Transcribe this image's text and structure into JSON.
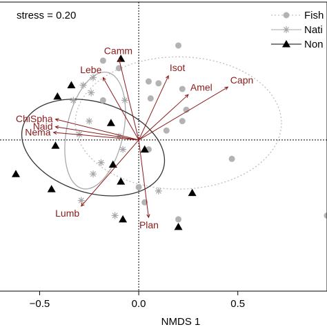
{
  "chart_data": {
    "type": "scatter",
    "stress_label": "stress = 0.20",
    "xlabel": "NMDS 1",
    "ylabel": "",
    "xlim": [
      -0.7,
      0.95
    ],
    "ylim": [
      -0.8,
      0.73
    ],
    "x_ticks": [
      -0.5,
      0.0,
      0.5
    ],
    "x_tick_labels": [
      "−0.5",
      "0.0",
      "0.5"
    ],
    "colors": {
      "fish": "#b3b3b3",
      "native": "#a6a6a6",
      "none": "#000000",
      "vector": "#8b1a1a",
      "ellipse_fish": "#bdbdbd",
      "ellipse_native": "#a9a9a9",
      "ellipse_none": "#333333"
    },
    "legend": {
      "position": "top-right",
      "entries": [
        {
          "key": "fish",
          "label": "Fish",
          "marker": "circle",
          "line": "dotted"
        },
        {
          "key": "native",
          "label": "Nati",
          "marker": "asterisk",
          "line": "solid"
        },
        {
          "key": "none",
          "label": "Non",
          "marker": "triangle",
          "line": "solid"
        }
      ]
    },
    "series": [
      {
        "key": "fish",
        "points": [
          {
            "x": 0.2,
            "y": 0.5
          },
          {
            "x": -0.18,
            "y": 0.42
          },
          {
            "x": -0.1,
            "y": 0.38
          },
          {
            "x": 0.05,
            "y": 0.31
          },
          {
            "x": 0.1,
            "y": 0.3
          },
          {
            "x": 0.22,
            "y": 0.27
          },
          {
            "x": 0.06,
            "y": 0.22
          },
          {
            "x": -0.18,
            "y": 0.21
          },
          {
            "x": 0.24,
            "y": 0.16
          },
          {
            "x": 0.22,
            "y": 0.1
          },
          {
            "x": 0.14,
            "y": 0.05
          },
          {
            "x": 0.05,
            "y": -0.05
          },
          {
            "x": 0.47,
            "y": -0.1
          },
          {
            "x": 0.0,
            "y": -0.25
          },
          {
            "x": 0.03,
            "y": -0.33
          },
          {
            "x": 0.2,
            "y": -0.42
          },
          {
            "x": 0.95,
            "y": -0.4
          }
        ]
      },
      {
        "key": "native",
        "points": [
          {
            "x": -0.23,
            "y": 0.33
          },
          {
            "x": -0.28,
            "y": 0.29
          },
          {
            "x": -0.24,
            "y": 0.25
          },
          {
            "x": -0.33,
            "y": 0.21
          },
          {
            "x": -0.07,
            "y": 0.21
          },
          {
            "x": -0.25,
            "y": 0.1
          },
          {
            "x": -0.3,
            "y": 0.03
          },
          {
            "x": -0.1,
            "y": 0.02
          },
          {
            "x": -0.08,
            "y": -0.05
          },
          {
            "x": -0.19,
            "y": -0.12
          },
          {
            "x": -0.23,
            "y": -0.18
          },
          {
            "x": 0.1,
            "y": -0.27
          },
          {
            "x": -0.29,
            "y": -0.32
          },
          {
            "x": -0.12,
            "y": -0.4
          }
        ]
      },
      {
        "key": "none",
        "points": [
          {
            "x": -0.09,
            "y": 0.43
          },
          {
            "x": -0.34,
            "y": 0.29
          },
          {
            "x": -0.41,
            "y": 0.23
          },
          {
            "x": -0.14,
            "y": 0.09
          },
          {
            "x": -0.42,
            "y": -0.03
          },
          {
            "x": 0.03,
            "y": -0.05
          },
          {
            "x": -0.13,
            "y": -0.13
          },
          {
            "x": -0.62,
            "y": -0.18
          },
          {
            "x": -0.44,
            "y": -0.26
          },
          {
            "x": -0.09,
            "y": -0.22
          },
          {
            "x": 0.27,
            "y": -0.28
          },
          {
            "x": -0.08,
            "y": -0.42
          },
          {
            "x": 0.2,
            "y": -0.46
          }
        ]
      }
    ],
    "ellipses": [
      {
        "key": "fish",
        "cx": 0.2,
        "cy": 0.09,
        "rx": 0.52,
        "ry": 0.35,
        "angle": 0,
        "style": "dotted"
      },
      {
        "key": "native",
        "cx": -0.22,
        "cy": 0.05,
        "rx": 0.3,
        "ry": 0.15,
        "angle": -78,
        "style": "solid"
      },
      {
        "key": "none",
        "cx": -0.23,
        "cy": -0.04,
        "rx": 0.37,
        "ry": 0.24,
        "angle": 17,
        "style": "solid"
      }
    ],
    "vectors": [
      {
        "label": "Camm",
        "x": -0.1,
        "y": 0.43
      },
      {
        "label": "Lebe",
        "x": -0.18,
        "y": 0.33
      },
      {
        "label": "Isot",
        "x": 0.15,
        "y": 0.34
      },
      {
        "label": "Amel",
        "x": 0.25,
        "y": 0.24
      },
      {
        "label": "Capn",
        "x": 0.45,
        "y": 0.28
      },
      {
        "label": "ChiSpha",
        "x": -0.42,
        "y": 0.11
      },
      {
        "label": "Naid",
        "x": -0.42,
        "y": 0.07
      },
      {
        "label": "Nema",
        "x": -0.43,
        "y": 0.04
      },
      {
        "label": "Lumb",
        "x": -0.29,
        "y": -0.35
      },
      {
        "label": "Plan",
        "x": 0.05,
        "y": -0.41
      }
    ]
  }
}
